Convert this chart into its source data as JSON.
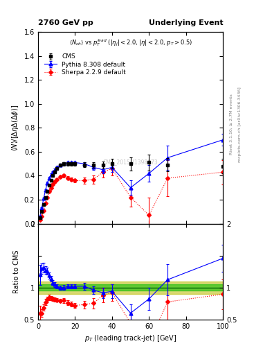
{
  "title_left": "2760 GeV pp",
  "title_right": "Underlying Event",
  "watermark": "CMS_2015_I1398073",
  "ylim_main": [
    0,
    1.6
  ],
  "ylim_ratio": [
    0.5,
    2.0
  ],
  "xlim": [
    0,
    100
  ],
  "cms_x": [
    1.0,
    2.0,
    3.0,
    4.0,
    5.0,
    6.0,
    7.0,
    8.0,
    9.0,
    10.0,
    12.0,
    14.0,
    16.0,
    18.0,
    20.0,
    25.0,
    30.0,
    35.0,
    40.0,
    50.0,
    60.0,
    70.0,
    100.0
  ],
  "cms_y": [
    0.05,
    0.1,
    0.16,
    0.22,
    0.27,
    0.32,
    0.36,
    0.4,
    0.43,
    0.46,
    0.49,
    0.5,
    0.5,
    0.5,
    0.5,
    0.49,
    0.49,
    0.49,
    0.5,
    0.5,
    0.51,
    0.49,
    0.48
  ],
  "cms_yerr": [
    0.005,
    0.005,
    0.007,
    0.008,
    0.009,
    0.01,
    0.01,
    0.01,
    0.01,
    0.01,
    0.012,
    0.015,
    0.015,
    0.015,
    0.015,
    0.02,
    0.025,
    0.03,
    0.04,
    0.055,
    0.065,
    0.055,
    0.06
  ],
  "pythia_x": [
    1.0,
    2.0,
    3.0,
    4.0,
    5.0,
    6.0,
    7.0,
    8.0,
    9.0,
    10.0,
    12.0,
    14.0,
    16.0,
    18.0,
    20.0,
    25.0,
    30.0,
    35.0,
    40.0,
    50.0,
    60.0,
    70.0,
    100.0
  ],
  "pythia_y": [
    0.06,
    0.13,
    0.21,
    0.28,
    0.34,
    0.38,
    0.41,
    0.43,
    0.45,
    0.47,
    0.49,
    0.5,
    0.51,
    0.51,
    0.51,
    0.5,
    0.47,
    0.45,
    0.47,
    0.3,
    0.42,
    0.55,
    0.7
  ],
  "pythia_yerr": [
    0.005,
    0.005,
    0.007,
    0.008,
    0.009,
    0.01,
    0.01,
    0.01,
    0.01,
    0.01,
    0.01,
    0.01,
    0.01,
    0.01,
    0.01,
    0.015,
    0.02,
    0.03,
    0.04,
    0.06,
    0.07,
    0.1,
    0.05
  ],
  "sherpa_x": [
    1.0,
    2.0,
    3.0,
    4.0,
    5.0,
    6.0,
    7.0,
    8.0,
    9.0,
    10.0,
    12.0,
    14.0,
    16.0,
    18.0,
    20.0,
    25.0,
    30.0,
    35.0,
    40.0,
    50.0,
    60.0,
    70.0,
    100.0
  ],
  "sherpa_y": [
    0.03,
    0.06,
    0.11,
    0.17,
    0.22,
    0.27,
    0.3,
    0.33,
    0.35,
    0.37,
    0.39,
    0.4,
    0.38,
    0.37,
    0.36,
    0.36,
    0.37,
    0.43,
    0.46,
    0.22,
    0.07,
    0.38,
    0.43
  ],
  "sherpa_yerr": [
    0.005,
    0.005,
    0.007,
    0.008,
    0.009,
    0.01,
    0.01,
    0.01,
    0.01,
    0.01,
    0.012,
    0.015,
    0.015,
    0.015,
    0.015,
    0.025,
    0.035,
    0.045,
    0.055,
    0.08,
    0.15,
    0.15,
    0.1
  ],
  "cms_color": "#000000",
  "pythia_color": "#0000ff",
  "sherpa_color": "#ff0000",
  "band_green_color": "#00bb00",
  "band_yellow_color": "#bbbb00",
  "band_inner": 0.05,
  "band_outer": 0.1,
  "legend_labels": [
    "CMS",
    "Pythia 8.308 default",
    "Sherpa 2.2.9 default"
  ]
}
